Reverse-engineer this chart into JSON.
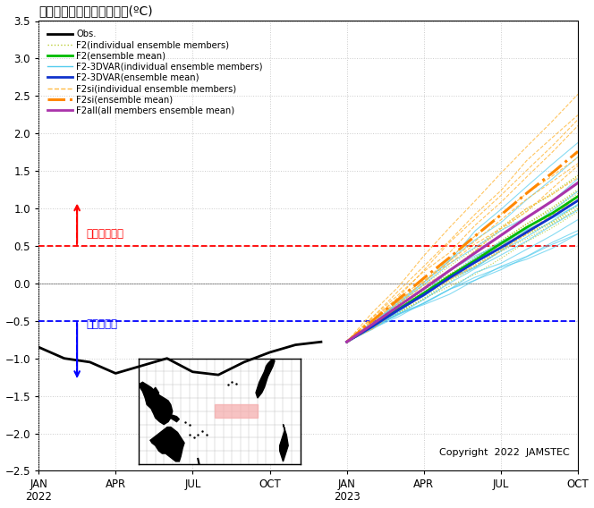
{
  "title": "エルニーニョ指数の時系列(ºC)",
  "xlim_left": 0,
  "xlim_right": 21,
  "ylim": [
    -2.5,
    3.5
  ],
  "yticks": [
    -2.5,
    -2.0,
    -1.5,
    -1.0,
    -0.5,
    0,
    0.5,
    1.0,
    1.5,
    2.0,
    2.5,
    3.0,
    3.5
  ],
  "xtick_positions": [
    0,
    3,
    6,
    9,
    12,
    15,
    18,
    21
  ],
  "xtick_labels_bottom": [
    "JAN\n2022",
    "APR",
    "JUL",
    "OCT",
    "JAN\n2023",
    "APR",
    "JUL",
    "OCT"
  ],
  "el_nino_threshold": 0.5,
  "la_nina_threshold": -0.5,
  "el_nino_label": "エルニーニョ",
  "la_nina_label": "ラニーニャ",
  "copyright_text": "Copyright  2022  JAMSTEC",
  "obs_color": "#000000",
  "f2_indv_color": "#bbcc33",
  "f2_mean_color": "#00bb00",
  "f23dvar_indv_color": "#55ccee",
  "f23dvar_mean_color": "#1133cc",
  "f2si_indv_color": "#ffbb44",
  "f2si_mean_color": "#ff8800",
  "f2all_color": "#aa33aa",
  "background_color": "#ffffff",
  "grid_color": "#cccccc",
  "obs_data_x": [
    0,
    1,
    2,
    3,
    4,
    5,
    6,
    7,
    8,
    9,
    10,
    11
  ],
  "obs_data_y": [
    -0.85,
    -1.0,
    -1.05,
    -1.2,
    -1.1,
    -1.0,
    -1.18,
    -1.22,
    -1.05,
    -0.92,
    -0.82,
    -0.78
  ],
  "forecast_start_x": 12,
  "f2_members_count": 10,
  "f23dvar_members_count": 13,
  "f2si_members_count": 10,
  "map_lon_min": 100,
  "map_lon_max": 290,
  "map_lat_min": -40,
  "map_lat_max": 40,
  "nino34_lon": [
    190,
    240
  ],
  "nino34_lat": [
    -5,
    5
  ]
}
